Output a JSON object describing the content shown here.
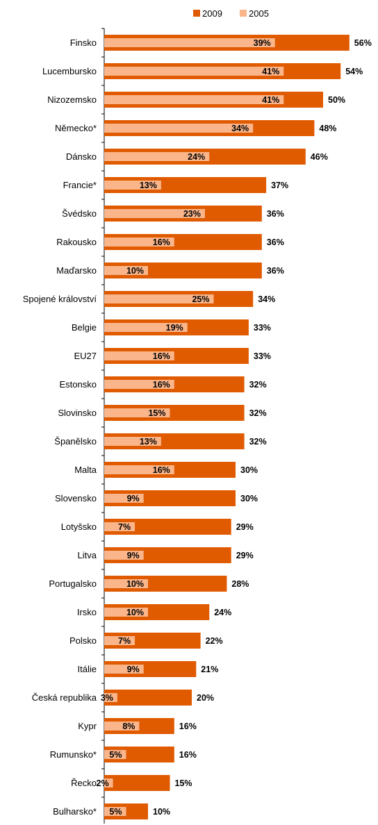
{
  "chart_data": {
    "type": "bar",
    "orientation": "horizontal",
    "categories": [
      "Finsko",
      "Lucembursko",
      "Nizozemsko",
      "Německo*",
      "Dánsko",
      "Francie*",
      "Švédsko",
      "Rakousko",
      "Maďarsko",
      "Spojené království",
      "Belgie",
      "EU27",
      "Estonsko",
      "Slovinsko",
      "Španělsko",
      "Malta",
      "Slovensko",
      "Lotyšsko",
      "Litva",
      "Portugalsko",
      "Irsko",
      "Polsko",
      "Itálie",
      "Česká republika",
      "Kypr",
      "Rumunsko*",
      "Řecko",
      "Bulharsko*"
    ],
    "series": [
      {
        "name": "2009",
        "color": "#E05A00",
        "values": [
          56,
          54,
          50,
          48,
          46,
          37,
          36,
          36,
          36,
          34,
          33,
          33,
          32,
          32,
          32,
          30,
          30,
          29,
          29,
          28,
          24,
          22,
          21,
          20,
          16,
          16,
          15,
          10
        ],
        "labels": [
          "56%",
          "54%",
          "50%",
          "48%",
          "46%",
          "37%",
          "36%",
          "36%",
          "36%",
          "34%",
          "33%",
          "33%",
          "32%",
          "32%",
          "32%",
          "30%",
          "30%",
          "29%",
          "29%",
          "28%",
          "24%",
          "22%",
          "21%",
          "20%",
          "16%",
          "16%",
          "15%",
          "10%"
        ]
      },
      {
        "name": "2005",
        "color": "#FAB58A",
        "values": [
          39,
          41,
          41,
          34,
          24,
          13,
          23,
          16,
          10,
          25,
          19,
          16,
          16,
          15,
          13,
          16,
          9,
          7,
          9,
          10,
          10,
          7,
          9,
          3,
          8,
          5,
          2,
          5
        ],
        "labels": [
          "39%",
          "41%",
          "41%",
          "34%",
          "24%",
          "13%",
          "23%",
          "16%",
          "10%",
          "25%",
          "19%",
          "16%",
          "16%",
          "15%",
          "13%",
          "16%",
          "9%",
          "7%",
          "9%",
          "10%",
          "10%",
          "7%",
          "9%",
          "3%",
          "8%",
          "5%",
          "2%",
          "5%"
        ]
      }
    ],
    "legend_position": "top-right",
    "grid": false
  }
}
